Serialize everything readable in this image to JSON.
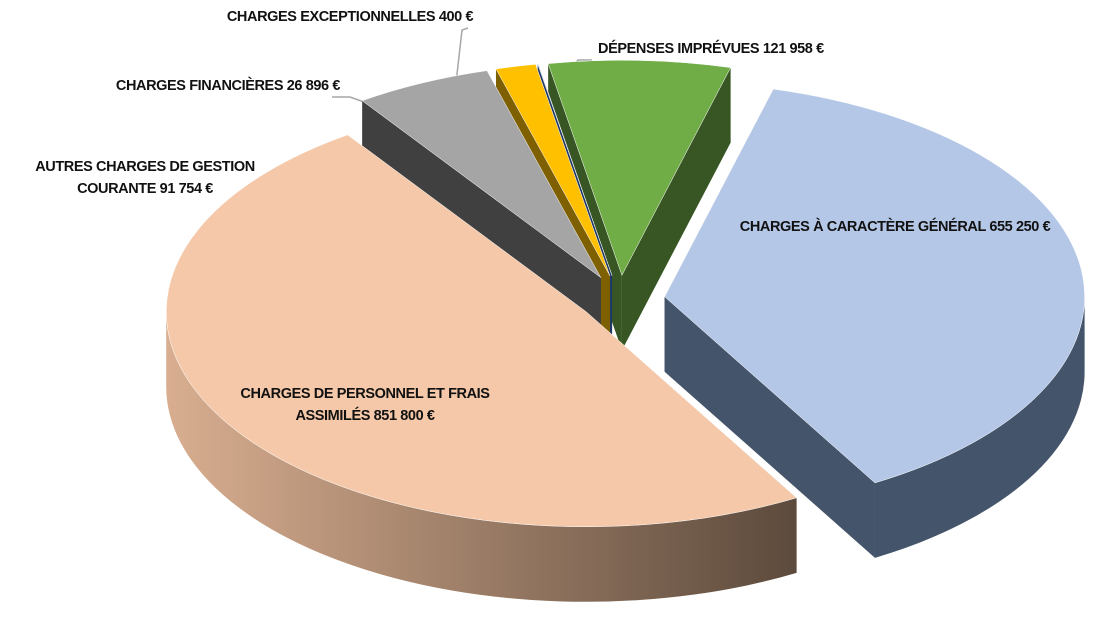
{
  "chart_data": {
    "type": "pie",
    "categories": [
      "CHARGES À CARACTÈRE GÉNÉRAL",
      "CHARGES DE PERSONNEL ET FRAIS ASSIMILÉS",
      "AUTRES CHARGES DE GESTION COURANTE",
      "CHARGES FINANCIÈRES",
      "CHARGES EXCEPTIONNELLES",
      "DÉPENSES IMPRÉVUES"
    ],
    "values": [
      655250,
      851800,
      91754,
      26896,
      400,
      121958
    ],
    "value_labels": [
      "655 250 €",
      "851 800 €",
      "91 754 €",
      "26 896 €",
      "400 €",
      "121 958 €"
    ],
    "colors": [
      "#b4c7e7",
      "#f4c8a8",
      "#a5a5a5",
      "#ffc000",
      "#4472c4",
      "#70ad47"
    ]
  }
}
